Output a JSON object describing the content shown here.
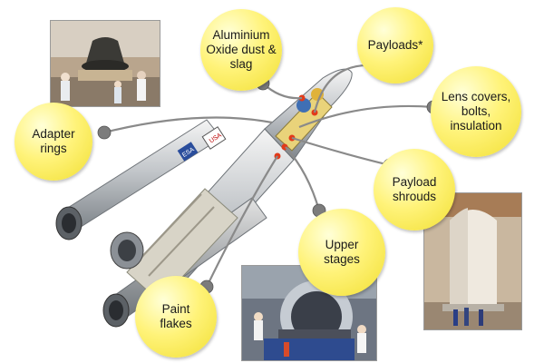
{
  "colors": {
    "bubble_fill": "#fff37a",
    "connector": "#8a8a8a",
    "knob": "#7c7c7c",
    "marker": "#e23a1a"
  },
  "labels": {
    "aluminium_oxide": "Aluminium\nOxide dust &\nslag",
    "payloads": "Payloads*",
    "lens_covers": "Lens covers,\nbolts,\ninsulation",
    "adapter_rings": "Adapter\nrings",
    "payload_shrouds": "Payload\nshrouds",
    "upper_stages": "Upper\nstages",
    "paint_flakes": "Paint\nflakes"
  },
  "rocket": {
    "flag_labels": [
      "USA",
      "ESA"
    ]
  }
}
